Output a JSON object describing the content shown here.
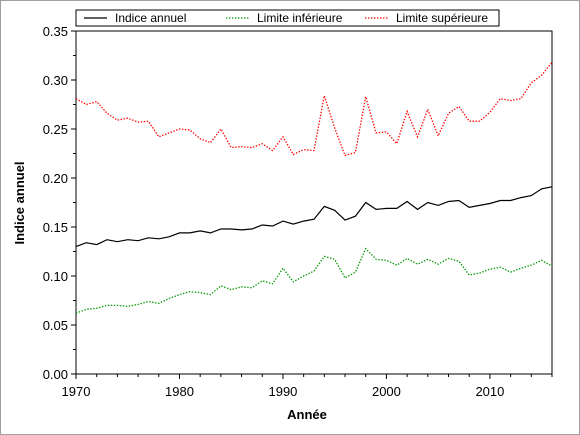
{
  "chart_data": {
    "type": "line",
    "xlabel": "Année",
    "ylabel": "Indice annuel",
    "xlim": [
      1970,
      2016
    ],
    "ylim": [
      0,
      0.35
    ],
    "x_ticks": [
      "1970",
      "1980",
      "1990",
      "2000",
      "2010"
    ],
    "y_ticks": [
      "0.00",
      "0.05",
      "0.10",
      "0.15",
      "0.20",
      "0.25",
      "0.30",
      "0.35"
    ],
    "legend_position": "top",
    "grid": false,
    "x": [
      1970,
      1971,
      1972,
      1973,
      1974,
      1975,
      1976,
      1977,
      1978,
      1979,
      1980,
      1981,
      1982,
      1983,
      1984,
      1985,
      1986,
      1987,
      1988,
      1989,
      1990,
      1991,
      1992,
      1993,
      1994,
      1995,
      1996,
      1997,
      1998,
      1999,
      2000,
      2001,
      2002,
      2003,
      2004,
      2005,
      2006,
      2007,
      2008,
      2009,
      2010,
      2011,
      2012,
      2013,
      2014,
      2015,
      2016
    ],
    "series": [
      {
        "name": "Indice annuel",
        "color": "#000000",
        "style": "solid",
        "values": [
          0.13,
          0.134,
          0.132,
          0.137,
          0.135,
          0.137,
          0.136,
          0.139,
          0.138,
          0.14,
          0.144,
          0.144,
          0.146,
          0.144,
          0.148,
          0.148,
          0.147,
          0.148,
          0.152,
          0.151,
          0.156,
          0.153,
          0.156,
          0.158,
          0.171,
          0.167,
          0.157,
          0.161,
          0.175,
          0.168,
          0.169,
          0.169,
          0.176,
          0.168,
          0.175,
          0.172,
          0.176,
          0.177,
          0.17,
          0.172,
          0.174,
          0.177,
          0.177,
          0.18,
          0.182,
          0.189,
          0.191
        ]
      },
      {
        "name": "Limite inférieure",
        "color": "#009900",
        "style": "dotted",
        "values": [
          0.062,
          0.066,
          0.067,
          0.07,
          0.07,
          0.069,
          0.071,
          0.074,
          0.072,
          0.077,
          0.081,
          0.084,
          0.083,
          0.081,
          0.09,
          0.086,
          0.089,
          0.088,
          0.095,
          0.092,
          0.108,
          0.094,
          0.1,
          0.105,
          0.12,
          0.117,
          0.098,
          0.104,
          0.128,
          0.117,
          0.116,
          0.111,
          0.118,
          0.112,
          0.117,
          0.112,
          0.118,
          0.115,
          0.101,
          0.103,
          0.107,
          0.109,
          0.104,
          0.108,
          0.111,
          0.116,
          0.11
        ]
      },
      {
        "name": "Limite supérieure",
        "color": "#ff0000",
        "style": "dotted",
        "values": [
          0.281,
          0.275,
          0.278,
          0.266,
          0.259,
          0.261,
          0.257,
          0.258,
          0.242,
          0.246,
          0.25,
          0.249,
          0.24,
          0.236,
          0.25,
          0.231,
          0.232,
          0.231,
          0.235,
          0.228,
          0.242,
          0.224,
          0.229,
          0.228,
          0.284,
          0.251,
          0.223,
          0.226,
          0.283,
          0.246,
          0.247,
          0.235,
          0.268,
          0.242,
          0.27,
          0.243,
          0.266,
          0.273,
          0.258,
          0.258,
          0.267,
          0.281,
          0.279,
          0.281,
          0.297,
          0.305,
          0.318
        ]
      }
    ]
  }
}
